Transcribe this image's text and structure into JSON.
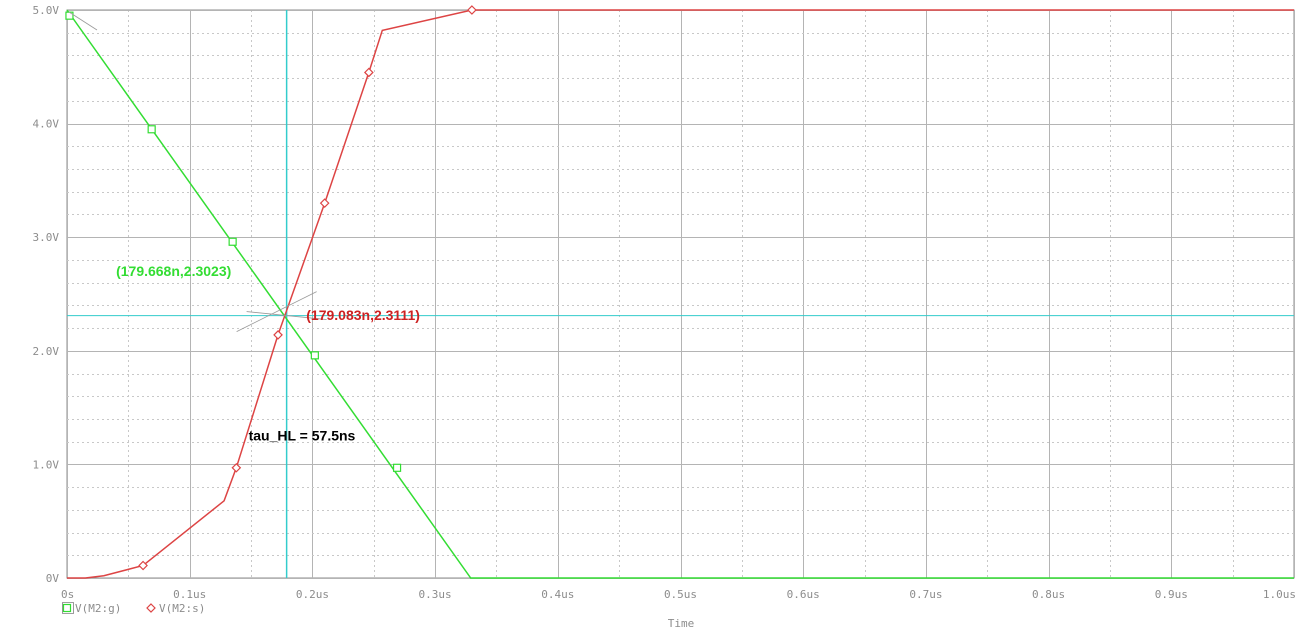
{
  "chart_data": {
    "type": "line",
    "xlabel": "Time",
    "ylabel": "",
    "xlim": [
      0,
      1.0
    ],
    "ylim": [
      0,
      5.0
    ],
    "x_ticks": [
      "0s",
      "0.1us",
      "0.2us",
      "0.3us",
      "0.4us",
      "0.5us",
      "0.6us",
      "0.7us",
      "0.8us",
      "0.9us",
      "1.0us"
    ],
    "y_ticks": [
      "0V",
      "1.0V",
      "2.0V",
      "3.0V",
      "4.0V",
      "5.0V"
    ],
    "grid": true,
    "series": [
      {
        "name": "V(M2:g)",
        "color": "#33dd33",
        "marker": "square",
        "x": [
          0.0,
          0.329,
          0.335,
          1.0
        ],
        "y": [
          5.0,
          0.0,
          0.0,
          0.0
        ],
        "markers_x": [
          0.002,
          0.069,
          0.135,
          0.202,
          0.269
        ],
        "markers_y": [
          4.95,
          3.95,
          2.96,
          1.96,
          0.97
        ]
      },
      {
        "name": "V(M2:s)",
        "color": "#dd4444",
        "marker": "diamond",
        "x": [
          0.0,
          0.015,
          0.03,
          0.062,
          0.128,
          0.138,
          0.172,
          0.21,
          0.246,
          0.257,
          0.33,
          1.0
        ],
        "y": [
          0.0,
          0.0,
          0.02,
          0.11,
          0.68,
          0.97,
          2.14,
          3.3,
          4.45,
          4.82,
          5.0,
          5.0
        ],
        "markers_x": [
          0.062,
          0.138,
          0.172,
          0.21,
          0.246,
          0.33
        ],
        "markers_y": [
          0.11,
          0.97,
          2.14,
          3.3,
          4.45,
          5.0
        ]
      }
    ],
    "cursor_x": 0.179,
    "cursor_y": 2.31,
    "cursor_color": "#33cccc",
    "annotations": [
      {
        "text": "(179.668n,2.3023)",
        "color": "#33dd33",
        "x": 0.04,
        "y": 2.66
      },
      {
        "text": "(179.083n,2.3111)",
        "color": "#cc2222",
        "x": 0.195,
        "y": 2.27
      },
      {
        "text": "tau_HL = 57.5ns",
        "color": "#000000",
        "x": 0.148,
        "y": 1.21
      }
    ]
  }
}
